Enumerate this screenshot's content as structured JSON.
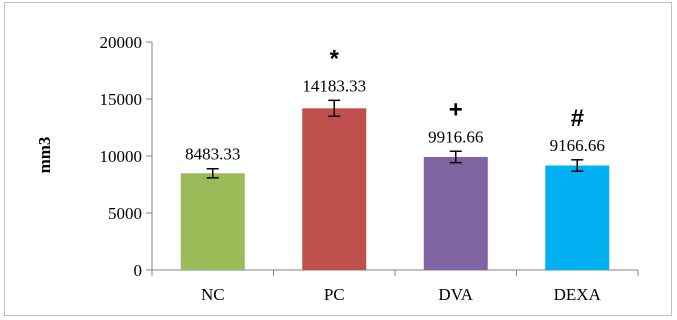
{
  "chart_data": {
    "type": "bar",
    "categories": [
      "NC",
      "PC",
      "DVA",
      "DEXA"
    ],
    "values": [
      8483.33,
      14183.33,
      9916.66,
      9166.66
    ],
    "data_labels": [
      "8483.33",
      "14183.33",
      "9916.66",
      "9166.66"
    ],
    "error": [
      400,
      700,
      500,
      500
    ],
    "significance_markers": [
      "",
      "*",
      "+",
      "#"
    ],
    "colors": [
      "#9BBB59",
      "#C0504D",
      "#8064A2",
      "#00B0F0"
    ],
    "ylabel": "mm3",
    "xlabel": "",
    "title": "",
    "ylim": [
      0,
      20000
    ],
    "yticks": [
      0,
      5000,
      10000,
      15000,
      20000
    ],
    "ytick_labels": [
      "0",
      "5000",
      "10000",
      "15000",
      "20000"
    ],
    "grid": false,
    "legend": "none"
  }
}
